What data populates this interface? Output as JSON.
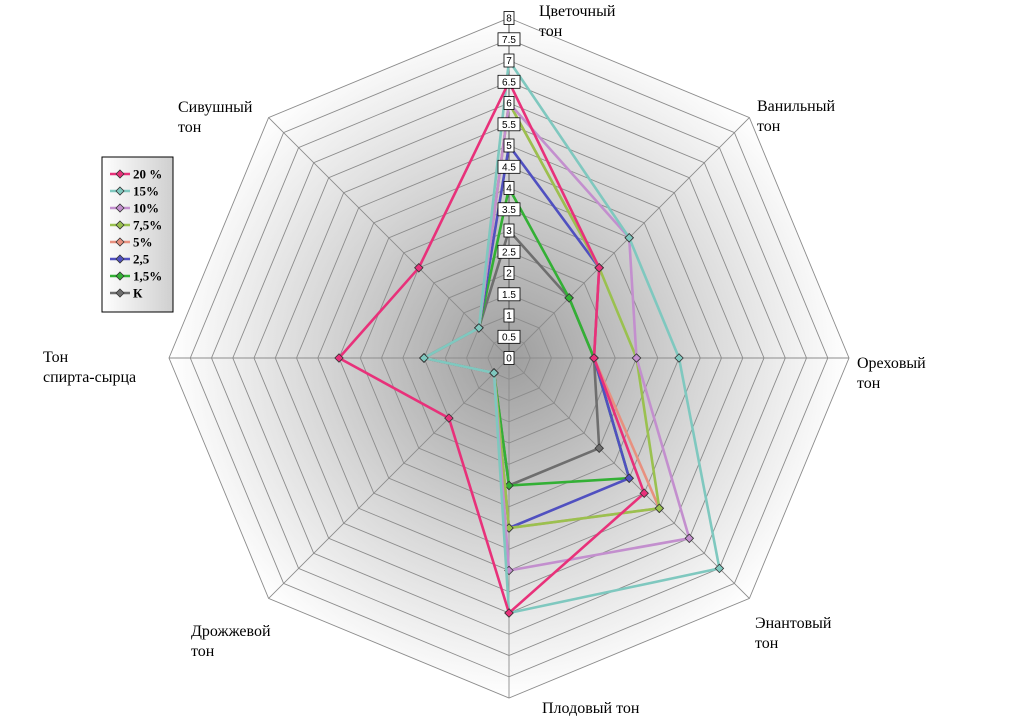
{
  "chart_data": {
    "type": "radar",
    "axes": [
      {
        "name": "cvetochny",
        "label_lines": [
          "Цветочный",
          "тон"
        ]
      },
      {
        "name": "vanilny",
        "label_lines": [
          "Ванильный",
          "тон"
        ]
      },
      {
        "name": "orehovy",
        "label_lines": [
          "Ореховый",
          "тон"
        ]
      },
      {
        "name": "enantovy",
        "label_lines": [
          "Энантовый",
          "тон"
        ]
      },
      {
        "name": "plodovy",
        "label_lines": [
          "Плодовый тон"
        ]
      },
      {
        "name": "drozhzhevoy",
        "label_lines": [
          "Дрожжевой",
          "тон"
        ]
      },
      {
        "name": "spirt-syrec",
        "label_lines": [
          "Тон",
          "спирта-сырца"
        ]
      },
      {
        "name": "sivushny",
        "label_lines": [
          "Сивушный",
          "тон"
        ]
      }
    ],
    "rmin": 0,
    "rmax": 8,
    "tick_step": 0.5,
    "tick_labels": [
      "0",
      "0.5",
      "1",
      "1.5",
      "2",
      "2.5",
      "3",
      "3.5",
      "4",
      "4.5",
      "5",
      "5.5",
      "6",
      "6.5",
      "7",
      "7.5",
      "8"
    ],
    "grid": true,
    "legend_position": "left",
    "series": [
      {
        "name": "20 %",
        "color": "#e8317a",
        "values": [
          6.5,
          3.0,
          2.0,
          4.5,
          6.0,
          2.0,
          4.0,
          3.0
        ]
      },
      {
        "name": "15%",
        "color": "#7fc8bf",
        "values": [
          7.0,
          4.0,
          4.0,
          7.0,
          6.0,
          0.5,
          2.0,
          1.0
        ]
      },
      {
        "name": "10%",
        "color": "#c38fce",
        "values": [
          6.0,
          4.0,
          3.0,
          6.0,
          5.0,
          0.5,
          2.0,
          1.0
        ]
      },
      {
        "name": "7,5%",
        "color": "#9ac14f",
        "values": [
          6.0,
          3.0,
          3.0,
          5.0,
          4.0,
          0.5,
          2.0,
          1.0
        ]
      },
      {
        "name": "5%",
        "color": "#e8907f",
        "values": [
          6.0,
          3.0,
          2.0,
          5.0,
          4.0,
          0.5,
          2.0,
          1.0
        ]
      },
      {
        "name": "2,5",
        "color": "#5050c0",
        "values": [
          5.0,
          3.0,
          2.0,
          4.0,
          4.0,
          0.5,
          2.0,
          1.0
        ]
      },
      {
        "name": "1,5%",
        "color": "#33b035",
        "values": [
          4.0,
          2.0,
          2.0,
          4.0,
          3.0,
          0.5,
          2.0,
          1.0
        ]
      },
      {
        "name": "К",
        "color": "#6e6e6e",
        "values": [
          3.0,
          2.0,
          2.0,
          3.0,
          3.0,
          0.5,
          2.0,
          1.0
        ]
      }
    ]
  }
}
